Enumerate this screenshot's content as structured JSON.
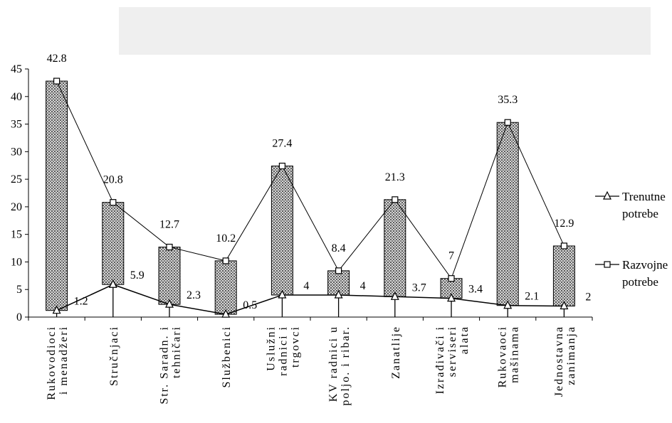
{
  "chart_data": {
    "type": "line",
    "title": "",
    "xlabel": "",
    "ylabel": "",
    "ylim": [
      0,
      45
    ],
    "ytick_step": 5,
    "grid": false,
    "legend_position": "right",
    "categories": [
      [
        "Rukovodioci",
        "i menadžeri"
      ],
      [
        "Stručnjaci"
      ],
      [
        "Str. Saradn. i",
        "tehničari"
      ],
      [
        "Službenici"
      ],
      [
        "Uslužni",
        "radnici i",
        "trgovci"
      ],
      [
        "KV radnici u",
        "poljo. i ribar."
      ],
      [
        "Zanatlije"
      ],
      [
        "Izrađivači i",
        "serviseri",
        "alata"
      ],
      [
        "Rukovaoci",
        "mašinama"
      ],
      [
        "Jednostavna",
        "zanimanja"
      ]
    ],
    "series": [
      {
        "name": "Trenutne potrebe",
        "legend_lines": [
          "Trenutne",
          "potrebe"
        ],
        "marker": "triangle",
        "values": [
          1.2,
          5.9,
          2.3,
          0.5,
          4,
          4,
          3.7,
          3.4,
          2.1,
          2
        ]
      },
      {
        "name": "Razvojne potrebe",
        "legend_lines": [
          "Razvojne",
          "potrebe"
        ],
        "marker": "square",
        "values": [
          42.8,
          20.8,
          12.7,
          10.2,
          27.4,
          8.4,
          21.3,
          7,
          35.3,
          12.9
        ]
      }
    ],
    "colors": {
      "line": "#000000",
      "bar_fill": "#b8b8b8",
      "banner": "#efefef"
    }
  }
}
